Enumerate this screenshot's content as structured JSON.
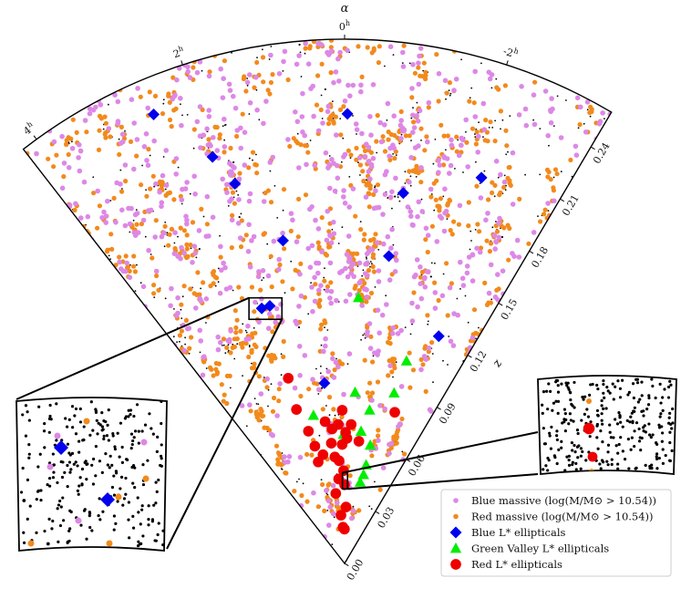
{
  "chart_data": {
    "type": "scatter",
    "projection": "polar wedge (cone diagram)",
    "axes": {
      "angular_label": "α",
      "angular_ticks": [
        "4h",
        "2h",
        "0h",
        "-2h"
      ],
      "radial_label": "z",
      "radial_ticks": [
        "0.00",
        "0.03",
        "0.06",
        "0.09",
        "0.12",
        "0.15",
        "0.18",
        "0.21",
        "0.24"
      ],
      "z_range": [
        0,
        0.26
      ],
      "ra_range_hours": [
        -3.4,
        4.2
      ]
    },
    "legend": {
      "placement": "lower-right",
      "entries": [
        {
          "key": "blue_massive",
          "label": "Blue massive (log(M/M⊙ > 10.54))",
          "marker": "circle",
          "color": "#dd88e6"
        },
        {
          "key": "red_massive",
          "label": "Red massive (log(M/M⊙ > 10.54))",
          "marker": "circle",
          "color": "#f28a1c"
        },
        {
          "key": "blue_lstar",
          "label": "Blue L* ellipticals",
          "marker": "diamond",
          "color": "#0000ee"
        },
        {
          "key": "green_lstar",
          "label": "Green Valley L* ellipticals",
          "marker": "triangle",
          "color": "#00ee00"
        },
        {
          "key": "red_lstar",
          "label": "Red L* ellipticals",
          "marker": "circle",
          "color": "#ee0000"
        }
      ]
    },
    "series": [
      {
        "name": "Blue L* ellipticals",
        "points": [
          [
            2.56,
            0.242
          ],
          [
            2.0,
            0.212
          ],
          [
            1.79,
            0.196
          ],
          [
            1.2,
            0.163
          ],
          [
            2.0,
            0.133
          ],
          [
            1.8,
            0.133
          ],
          [
            0.71,
            0.09
          ],
          [
            -0.04,
            0.223
          ],
          [
            -1.0,
            0.186
          ],
          [
            -0.91,
            0.154
          ],
          [
            -2.17,
            0.203
          ],
          [
            -2.5,
            0.122
          ]
        ]
      },
      {
        "name": "Green Valley L* ellipticals",
        "points": [
          [
            -0.33,
            0.132
          ],
          [
            -1.89,
            0.105
          ],
          [
            -1.8,
            0.088
          ],
          [
            -0.39,
            0.085
          ],
          [
            -1.03,
            0.077
          ],
          [
            -0.79,
            0.066
          ],
          [
            0.06,
            0.064
          ],
          [
            -1.36,
            0.06
          ],
          [
            1.32,
            0.075
          ],
          [
            -1.37,
            0.05
          ],
          [
            -1.34,
            0.045
          ],
          [
            -1.21,
            0.041
          ]
        ]
      },
      {
        "name": "Red L* ellipticals",
        "points": [
          [
            1.88,
            0.096
          ],
          [
            1.93,
            0.08
          ],
          [
            1.7,
            0.068
          ],
          [
            0.87,
            0.071
          ],
          [
            0.59,
            0.067
          ],
          [
            0.29,
            0.069
          ],
          [
            0.1,
            0.076
          ],
          [
            -0.05,
            0.065
          ],
          [
            -0.3,
            0.069
          ],
          [
            -0.12,
            0.062
          ],
          [
            -0.74,
            0.061
          ],
          [
            -2.04,
            0.079
          ],
          [
            0.7,
            0.06
          ],
          [
            0.13,
            0.059
          ],
          [
            0.58,
            0.053
          ],
          [
            0.34,
            0.051
          ],
          [
            1.25,
            0.055
          ],
          [
            1.58,
            0.06
          ],
          [
            1.62,
            0.052
          ],
          [
            0.07,
            0.046
          ],
          [
            0.0,
            0.039
          ],
          [
            -0.16,
            0.028
          ],
          [
            0.48,
            0.024
          ],
          [
            0.28,
            0.018
          ],
          [
            0.03,
            0.017
          ],
          [
            0.8,
            0.035
          ],
          [
            0.45,
            0.042
          ]
        ]
      }
    ],
    "background_population": {
      "description": "dense black dots = all galaxies; violet = blue massive; orange = red massive",
      "approx_counts": {
        "all_galaxies": 9000,
        "blue_massive": 700,
        "red_massive": 900
      }
    },
    "insets": [
      {
        "name": "left zoom",
        "source_ra_hours": [
          1.6,
          2.2
        ],
        "source_z": [
          0.125,
          0.14
        ]
      },
      {
        "name": "right zoom",
        "source_ra_hours": [
          -0.25,
          0.15
        ],
        "source_z": [
          0.037,
          0.045
        ]
      }
    ]
  }
}
